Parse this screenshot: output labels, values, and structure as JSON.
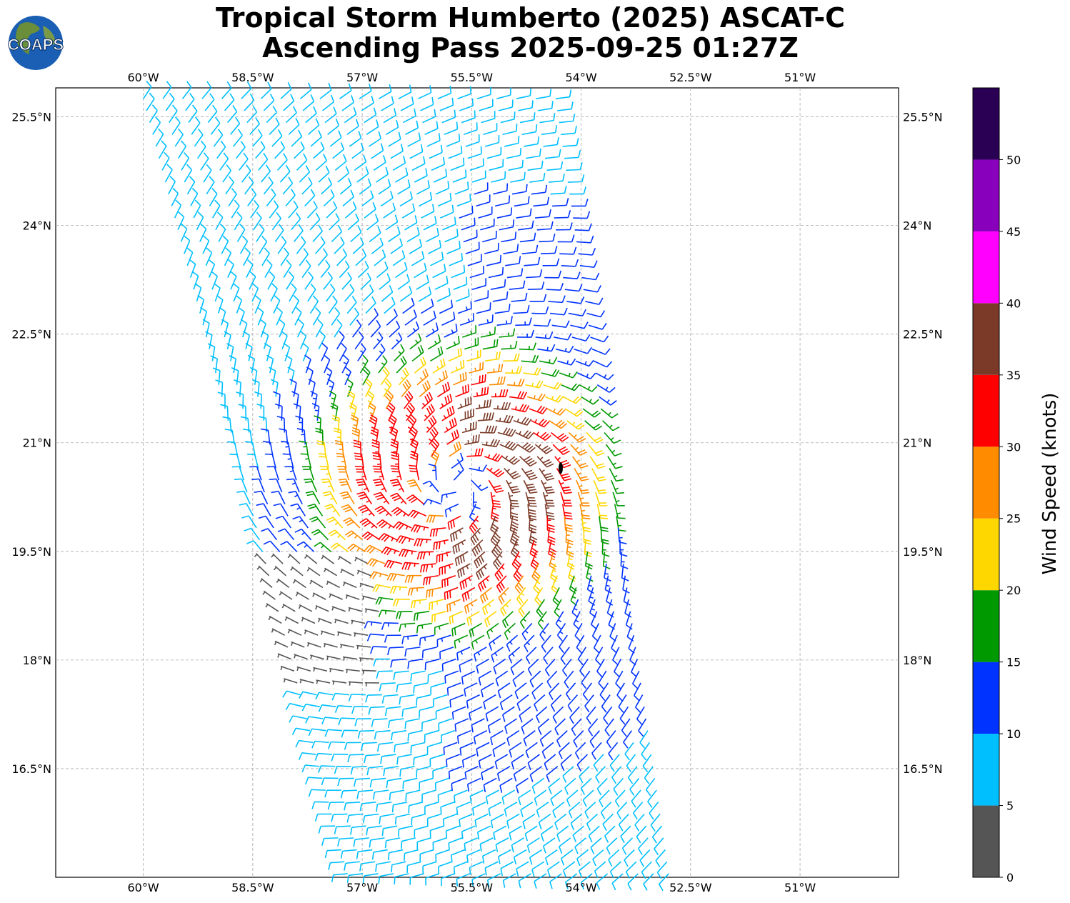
{
  "header": {
    "title_line1": "Tropical Storm Humberto (2025) ASCAT-C",
    "title_line2": "Ascending Pass 2025-09-25 01:27Z"
  },
  "logo": {
    "text": "COAPS",
    "icon": "globe-icon"
  },
  "map": {
    "lon_range": [
      -61.2,
      -49.65
    ],
    "lat_range": [
      15.0,
      25.9
    ],
    "lon_ticks": [
      {
        "value": -60,
        "label": "60°W"
      },
      {
        "value": -58.5,
        "label": "58.5°W"
      },
      {
        "value": -57,
        "label": "57°W"
      },
      {
        "value": -55.5,
        "label": "55.5°W"
      },
      {
        "value": -54,
        "label": "54°W"
      },
      {
        "value": -52.5,
        "label": "52.5°W"
      },
      {
        "value": -51,
        "label": "51°W"
      }
    ],
    "lat_ticks": [
      {
        "value": 25.5,
        "label": "25.5°N"
      },
      {
        "value": 24,
        "label": "24°N"
      },
      {
        "value": 22.5,
        "label": "22.5°N"
      },
      {
        "value": 21,
        "label": "21°N"
      },
      {
        "value": 19.5,
        "label": "19.5°N"
      },
      {
        "value": 18,
        "label": "18°N"
      },
      {
        "value": 16.5,
        "label": "16.5°N"
      }
    ],
    "grid": true,
    "storm_center": {
      "lon": -55.7,
      "lat": 20.4
    },
    "swath": {
      "top_lon": [
        -60.0,
        -54.35
      ],
      "bottom_lon": [
        -57.2,
        -52.8
      ]
    }
  },
  "colorbar": {
    "label": "Wind Speed (knots)",
    "ticks": [
      {
        "value": 0,
        "label": "0"
      },
      {
        "value": 5,
        "label": "5"
      },
      {
        "value": 10,
        "label": "10"
      },
      {
        "value": 15,
        "label": "15"
      },
      {
        "value": 20,
        "label": "20"
      },
      {
        "value": 25,
        "label": "25"
      },
      {
        "value": 30,
        "label": "30"
      },
      {
        "value": 35,
        "label": "35"
      },
      {
        "value": 40,
        "label": "40"
      },
      {
        "value": 45,
        "label": "45"
      },
      {
        "value": 50,
        "label": "50"
      }
    ],
    "max": 55,
    "bins": [
      {
        "from": 0,
        "to": 5,
        "color": "#555555"
      },
      {
        "from": 5,
        "to": 10,
        "color": "#00bfff"
      },
      {
        "from": 10,
        "to": 15,
        "color": "#0033ff"
      },
      {
        "from": 15,
        "to": 20,
        "color": "#009900"
      },
      {
        "from": 20,
        "to": 25,
        "color": "#ffd700"
      },
      {
        "from": 25,
        "to": 30,
        "color": "#ff8c00"
      },
      {
        "from": 30,
        "to": 35,
        "color": "#ff0000"
      },
      {
        "from": 35,
        "to": 40,
        "color": "#7b3a28"
      },
      {
        "from": 40,
        "to": 45,
        "color": "#ff00ff"
      },
      {
        "from": 45,
        "to": 50,
        "color": "#8800bb"
      },
      {
        "from": 50,
        "to": 55,
        "color": "#2a0055"
      }
    ]
  }
}
